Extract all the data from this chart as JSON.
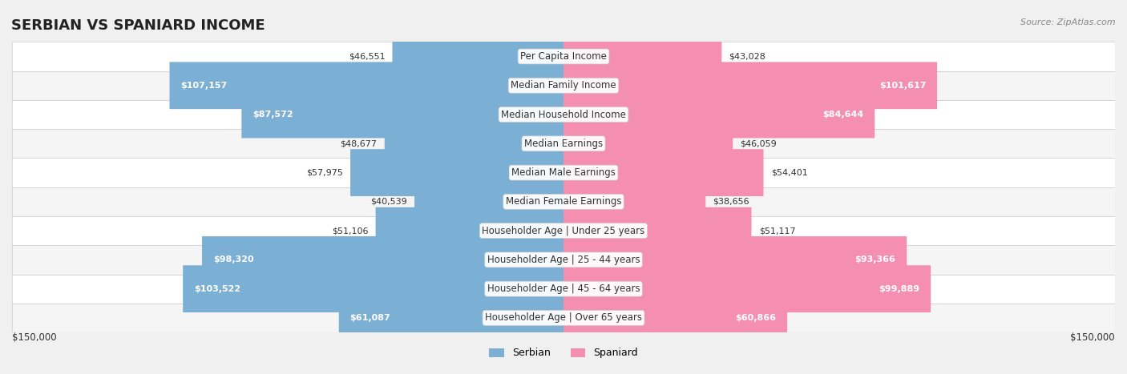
{
  "title": "SERBIAN VS SPANIARD INCOME",
  "source": "Source: ZipAtlas.com",
  "categories": [
    "Per Capita Income",
    "Median Family Income",
    "Median Household Income",
    "Median Earnings",
    "Median Male Earnings",
    "Median Female Earnings",
    "Householder Age | Under 25 years",
    "Householder Age | 25 - 44 years",
    "Householder Age | 45 - 64 years",
    "Householder Age | Over 65 years"
  ],
  "serbian_values": [
    46551,
    107157,
    87572,
    48677,
    57975,
    40539,
    51106,
    98320,
    103522,
    61087
  ],
  "spaniard_values": [
    43028,
    101617,
    84644,
    46059,
    54401,
    38656,
    51117,
    93366,
    99889,
    60866
  ],
  "serbian_color": "#7bafd4",
  "spaniard_color": "#f48fb1",
  "serbian_label_color_threshold": 60000,
  "spaniard_label_color_threshold": 60000,
  "max_value": 150000,
  "bg_color": "#f5f5f5",
  "row_bg_color": "#efefef",
  "row_bg_color_alt": "#e8e8e8",
  "xlabel": "$150,000",
  "title_fontsize": 13,
  "label_fontsize": 8.5,
  "value_fontsize": 8,
  "legend_fontsize": 9
}
